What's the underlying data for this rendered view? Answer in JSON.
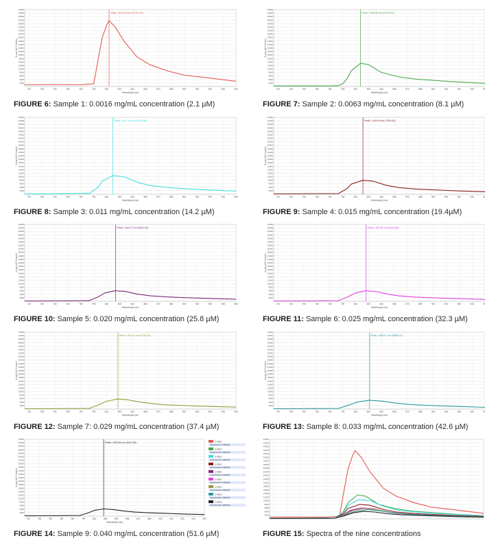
{
  "figures": [
    {
      "label": "FIGURE 6:",
      "caption": "Sample 1: 0.0016 mg/mL concentration (2.1 µM)",
      "color": "#e2574c",
      "peak_text": "Peak = 812.84 nm (37731.44)"
    },
    {
      "label": "FIGURE 7:",
      "caption": "Sample 2: 0.0063 mg/mL concentration (8.1 µM)",
      "color": "#4aa84a",
      "peak_text": "Peak = 815.66 nm (13275.61)"
    },
    {
      "label": "FIGURE 8:",
      "caption": "Sample 3: 0.011 mg/mL concentration (14.2 µM)",
      "color": "#3fe0e0",
      "peak_text": "Peak = 817.06 nm (10674.96)"
    },
    {
      "label": "FIGURE 9:",
      "caption": "Sample 4: 0.015 mg/mL concentration (19.4µM)",
      "color": "#8b1f1f",
      "peak_text": "Peak = 818.44 nm (7992.81)"
    },
    {
      "label": "FIGURE 10:",
      "caption": "Sample 5: 0.020 mg/mL concentration (25.8 µM)",
      "color": "#7a2a7a",
      "peak_text": "Peak = 820.27 nm (6061.03)"
    },
    {
      "label": "FIGURE 11:",
      "caption": "Sample 6: 0.025 mg/mL concentration (32.3 µM)",
      "color": "#e040e0",
      "peak_text": "Peak = 822.02 nm (6034.63)"
    },
    {
      "label": "FIGURE 12:",
      "caption": "Sample 7: 0.029 mg/mL concentration (37.4 µM)",
      "color": "#9a9a3a",
      "peak_text": "Peak = 823.10 nm (5735.45)"
    },
    {
      "label": "FIGURE 13:",
      "caption": "Sample 8: 0.033 mg/mL concentration (42.6 µM)",
      "color": "#2a9a9a",
      "peak_text": "Peak = 826.27 nm (5080.01)"
    },
    {
      "label": "FIGURE 14:",
      "caption": "Sample 9: 0.040 mg/mL concentration (51.6 µM)",
      "color": "#222222",
      "peak_text": "Peak = 822.64 nm (4142.36)"
    },
    {
      "label": "FIGURE 15:",
      "caption": "Spectra of the nine concentrations",
      "color": "#e2574c",
      "peak_text": ""
    }
  ],
  "axis_text": {
    "ylabel": "Scope (AD Counts)",
    "xlabel": "Wavelength (nm)",
    "yticks": [
      "44000",
      "42000",
      "40000",
      "38000",
      "36000",
      "34000",
      "32000",
      "30000",
      "28000",
      "26000",
      "24000",
      "22000",
      "20000",
      "18000",
      "16000",
      "14000",
      "12000",
      "10000",
      "8000",
      "6000",
      "4000",
      "2000"
    ],
    "xticks": [
      "720",
      "735",
      "750",
      "765",
      "780",
      "795",
      "810",
      "825",
      "840",
      "855",
      "870",
      "885",
      "900",
      "915",
      "930",
      "945",
      "960"
    ]
  },
  "legend": {
    "entries": [
      {
        "name": "S-S99/D",
        "sub": "Serial Number: 22061126",
        "color": "#e2574c"
      },
      {
        "name": "S-S99/D",
        "sub": "Serial Number: 22061126",
        "color": "#4aa84a"
      },
      {
        "name": "S-S99/D",
        "sub": "Serial Number: 22061126",
        "color": "#3fe0e0"
      },
      {
        "name": "S-S99/D",
        "sub": "Serial Number: 22061126",
        "color": "#8b1f1f"
      },
      {
        "name": "S-S99/D",
        "sub": "Serial Number: 22061126",
        "color": "#7a2a7a"
      },
      {
        "name": "S-S99/D",
        "sub": "Serial Number: 22061126",
        "color": "#e040e0"
      },
      {
        "name": "S-S99/D",
        "sub": "Serial Number: 22061126",
        "color": "#9a9a3a"
      },
      {
        "name": "S-S99/D",
        "sub": "Serial Number: 22061126",
        "color": "#2a9a9a"
      },
      {
        "name": "S-S99/D",
        "sub": "Serial Number: 22061126",
        "color": "#222222"
      }
    ]
  },
  "chart_data": [
    {
      "type": "line",
      "xlim": [
        715,
        960
      ],
      "ylim": [
        0,
        44000
      ],
      "grid": true,
      "peak_x": 812.84,
      "series": [
        {
          "x": [
            715,
            780,
            795,
            800,
            805,
            810,
            812.84,
            820,
            830,
            845,
            860,
            880,
            900,
            930,
            960
          ],
          "y": [
            1000,
            1000,
            1500,
            15000,
            28000,
            35000,
            37731,
            34000,
            26000,
            17000,
            12500,
            9000,
            6500,
            4800,
            3000
          ]
        }
      ]
    },
    {
      "type": "line",
      "xlim": [
        715,
        960
      ],
      "ylim": [
        0,
        44000
      ],
      "grid": true,
      "peak_x": 815.66,
      "series": [
        {
          "x": [
            715,
            780,
            790,
            795,
            800,
            805,
            815.66,
            825,
            840,
            860,
            880,
            900,
            930,
            960
          ],
          "y": [
            300,
            300,
            500,
            1500,
            4500,
            9000,
            13275,
            12500,
            8000,
            5500,
            4200,
            3500,
            2500,
            1800
          ]
        }
      ]
    },
    {
      "type": "line",
      "xlim": [
        715,
        960
      ],
      "ylim": [
        0,
        44000
      ],
      "grid": true,
      "peak_x": 817.06,
      "series": [
        {
          "x": [
            715,
            790,
            800,
            805,
            817.06,
            830,
            845,
            860,
            880,
            900,
            930,
            960
          ],
          "y": [
            200,
            500,
            4000,
            7500,
            10675,
            10000,
            7000,
            5000,
            3900,
            3200,
            2400,
            1800
          ]
        }
      ]
    },
    {
      "type": "line",
      "xlim": [
        715,
        960
      ],
      "ylim": [
        0,
        44000
      ],
      "grid": true,
      "peak_x": 818.44,
      "series": [
        {
          "x": [
            715,
            790,
            800,
            805,
            818.44,
            830,
            845,
            860,
            880,
            900,
            930,
            960
          ],
          "y": [
            200,
            400,
            3200,
            5800,
            7993,
            7500,
            5200,
            3800,
            3000,
            2500,
            1900,
            1400
          ]
        }
      ]
    },
    {
      "type": "line",
      "xlim": [
        715,
        960
      ],
      "ylim": [
        0,
        44000
      ],
      "grid": true,
      "peak_x": 820.27,
      "series": [
        {
          "x": [
            715,
            790,
            800,
            808,
            820.27,
            832,
            845,
            860,
            880,
            900,
            930,
            960
          ],
          "y": [
            200,
            400,
            2500,
            4800,
            6061,
            5600,
            4200,
            3200,
            2500,
            2100,
            1600,
            1200
          ]
        }
      ]
    },
    {
      "type": "line",
      "xlim": [
        715,
        960
      ],
      "ylim": [
        0,
        44000
      ],
      "grid": true,
      "peak_x": 822.02,
      "series": [
        {
          "x": [
            715,
            790,
            800,
            810,
            822.02,
            835,
            848,
            860,
            880,
            900,
            930,
            960
          ],
          "y": [
            200,
            400,
            2300,
            4800,
            6035,
            5500,
            4000,
            3100,
            2400,
            2000,
            1500,
            1100
          ]
        }
      ]
    },
    {
      "type": "line",
      "xlim": [
        715,
        960
      ],
      "ylim": [
        0,
        44000
      ],
      "grid": true,
      "peak_x": 823.1,
      "series": [
        {
          "x": [
            715,
            790,
            800,
            810,
            823.1,
            836,
            850,
            865,
            880,
            900,
            930,
            960
          ],
          "y": [
            200,
            400,
            2200,
            4500,
            5735,
            5200,
            3900,
            3000,
            2400,
            2000,
            1500,
            1100
          ]
        }
      ]
    },
    {
      "type": "line",
      "xlim": [
        715,
        960
      ],
      "ylim": [
        0,
        44000
      ],
      "grid": true,
      "peak_x": 826.27,
      "series": [
        {
          "x": [
            715,
            790,
            800,
            812,
            826.27,
            840,
            855,
            870,
            890,
            910,
            935,
            960
          ],
          "y": [
            200,
            400,
            1900,
            4000,
            5080,
            4600,
            3500,
            2700,
            2200,
            1800,
            1400,
            1000
          ]
        }
      ]
    },
    {
      "type": "line",
      "xlim": [
        715,
        960
      ],
      "ylim": [
        0,
        44000
      ],
      "grid": true,
      "peak_x": 822.64,
      "series": [
        {
          "x": [
            715,
            790,
            800,
            810,
            822.64,
            835,
            850,
            865,
            885,
            905,
            930,
            960
          ],
          "y": [
            200,
            400,
            1600,
            3300,
            4142,
            3800,
            2900,
            2300,
            1900,
            1600,
            1200,
            900
          ]
        }
      ]
    },
    {
      "type": "line",
      "xlim": [
        715,
        960
      ],
      "ylim": [
        0,
        44000
      ],
      "grid": true,
      "legend": "right",
      "series": [
        {
          "x": [
            715,
            780,
            795,
            800,
            805,
            810,
            812.84,
            820,
            830,
            845,
            860,
            880,
            900,
            930,
            960
          ],
          "y": [
            1000,
            1000,
            1500,
            15000,
            28000,
            35000,
            37731,
            34000,
            26000,
            17000,
            12500,
            9000,
            6500,
            4800,
            3000
          ]
        },
        {
          "x": [
            715,
            780,
            790,
            795,
            800,
            805,
            815.66,
            825,
            840,
            860,
            880,
            900,
            930,
            960
          ],
          "y": [
            300,
            300,
            500,
            1500,
            4500,
            9000,
            13275,
            12500,
            8000,
            5500,
            4200,
            3500,
            2500,
            1800
          ]
        },
        {
          "x": [
            715,
            790,
            800,
            805,
            817.06,
            830,
            845,
            860,
            880,
            900,
            930,
            960
          ],
          "y": [
            200,
            500,
            4000,
            7500,
            10675,
            10000,
            7000,
            5000,
            3900,
            3200,
            2400,
            1800
          ]
        },
        {
          "x": [
            715,
            790,
            800,
            805,
            818.44,
            830,
            845,
            860,
            880,
            900,
            930,
            960
          ],
          "y": [
            200,
            400,
            3200,
            5800,
            7993,
            7500,
            5200,
            3800,
            3000,
            2500,
            1900,
            1400
          ]
        },
        {
          "x": [
            715,
            790,
            800,
            808,
            820.27,
            832,
            845,
            860,
            880,
            900,
            930,
            960
          ],
          "y": [
            200,
            400,
            2500,
            4800,
            6061,
            5600,
            4200,
            3200,
            2500,
            2100,
            1600,
            1200
          ]
        },
        {
          "x": [
            715,
            790,
            800,
            810,
            822.02,
            835,
            848,
            860,
            880,
            900,
            930,
            960
          ],
          "y": [
            200,
            400,
            2300,
            4800,
            6035,
            5500,
            4000,
            3100,
            2400,
            2000,
            1500,
            1100
          ]
        },
        {
          "x": [
            715,
            790,
            800,
            810,
            823.1,
            836,
            850,
            865,
            880,
            900,
            930,
            960
          ],
          "y": [
            200,
            400,
            2200,
            4500,
            5735,
            5200,
            3900,
            3000,
            2400,
            2000,
            1500,
            1100
          ]
        },
        {
          "x": [
            715,
            790,
            800,
            812,
            826.27,
            840,
            855,
            870,
            890,
            910,
            935,
            960
          ],
          "y": [
            200,
            400,
            1900,
            4000,
            5080,
            4600,
            3500,
            2700,
            2200,
            1800,
            1400,
            1000
          ]
        },
        {
          "x": [
            715,
            790,
            800,
            810,
            822.64,
            835,
            850,
            865,
            885,
            905,
            930,
            960
          ],
          "y": [
            200,
            400,
            1600,
            3300,
            4142,
            3800,
            2900,
            2300,
            1900,
            1600,
            1200,
            900
          ]
        }
      ]
    }
  ]
}
